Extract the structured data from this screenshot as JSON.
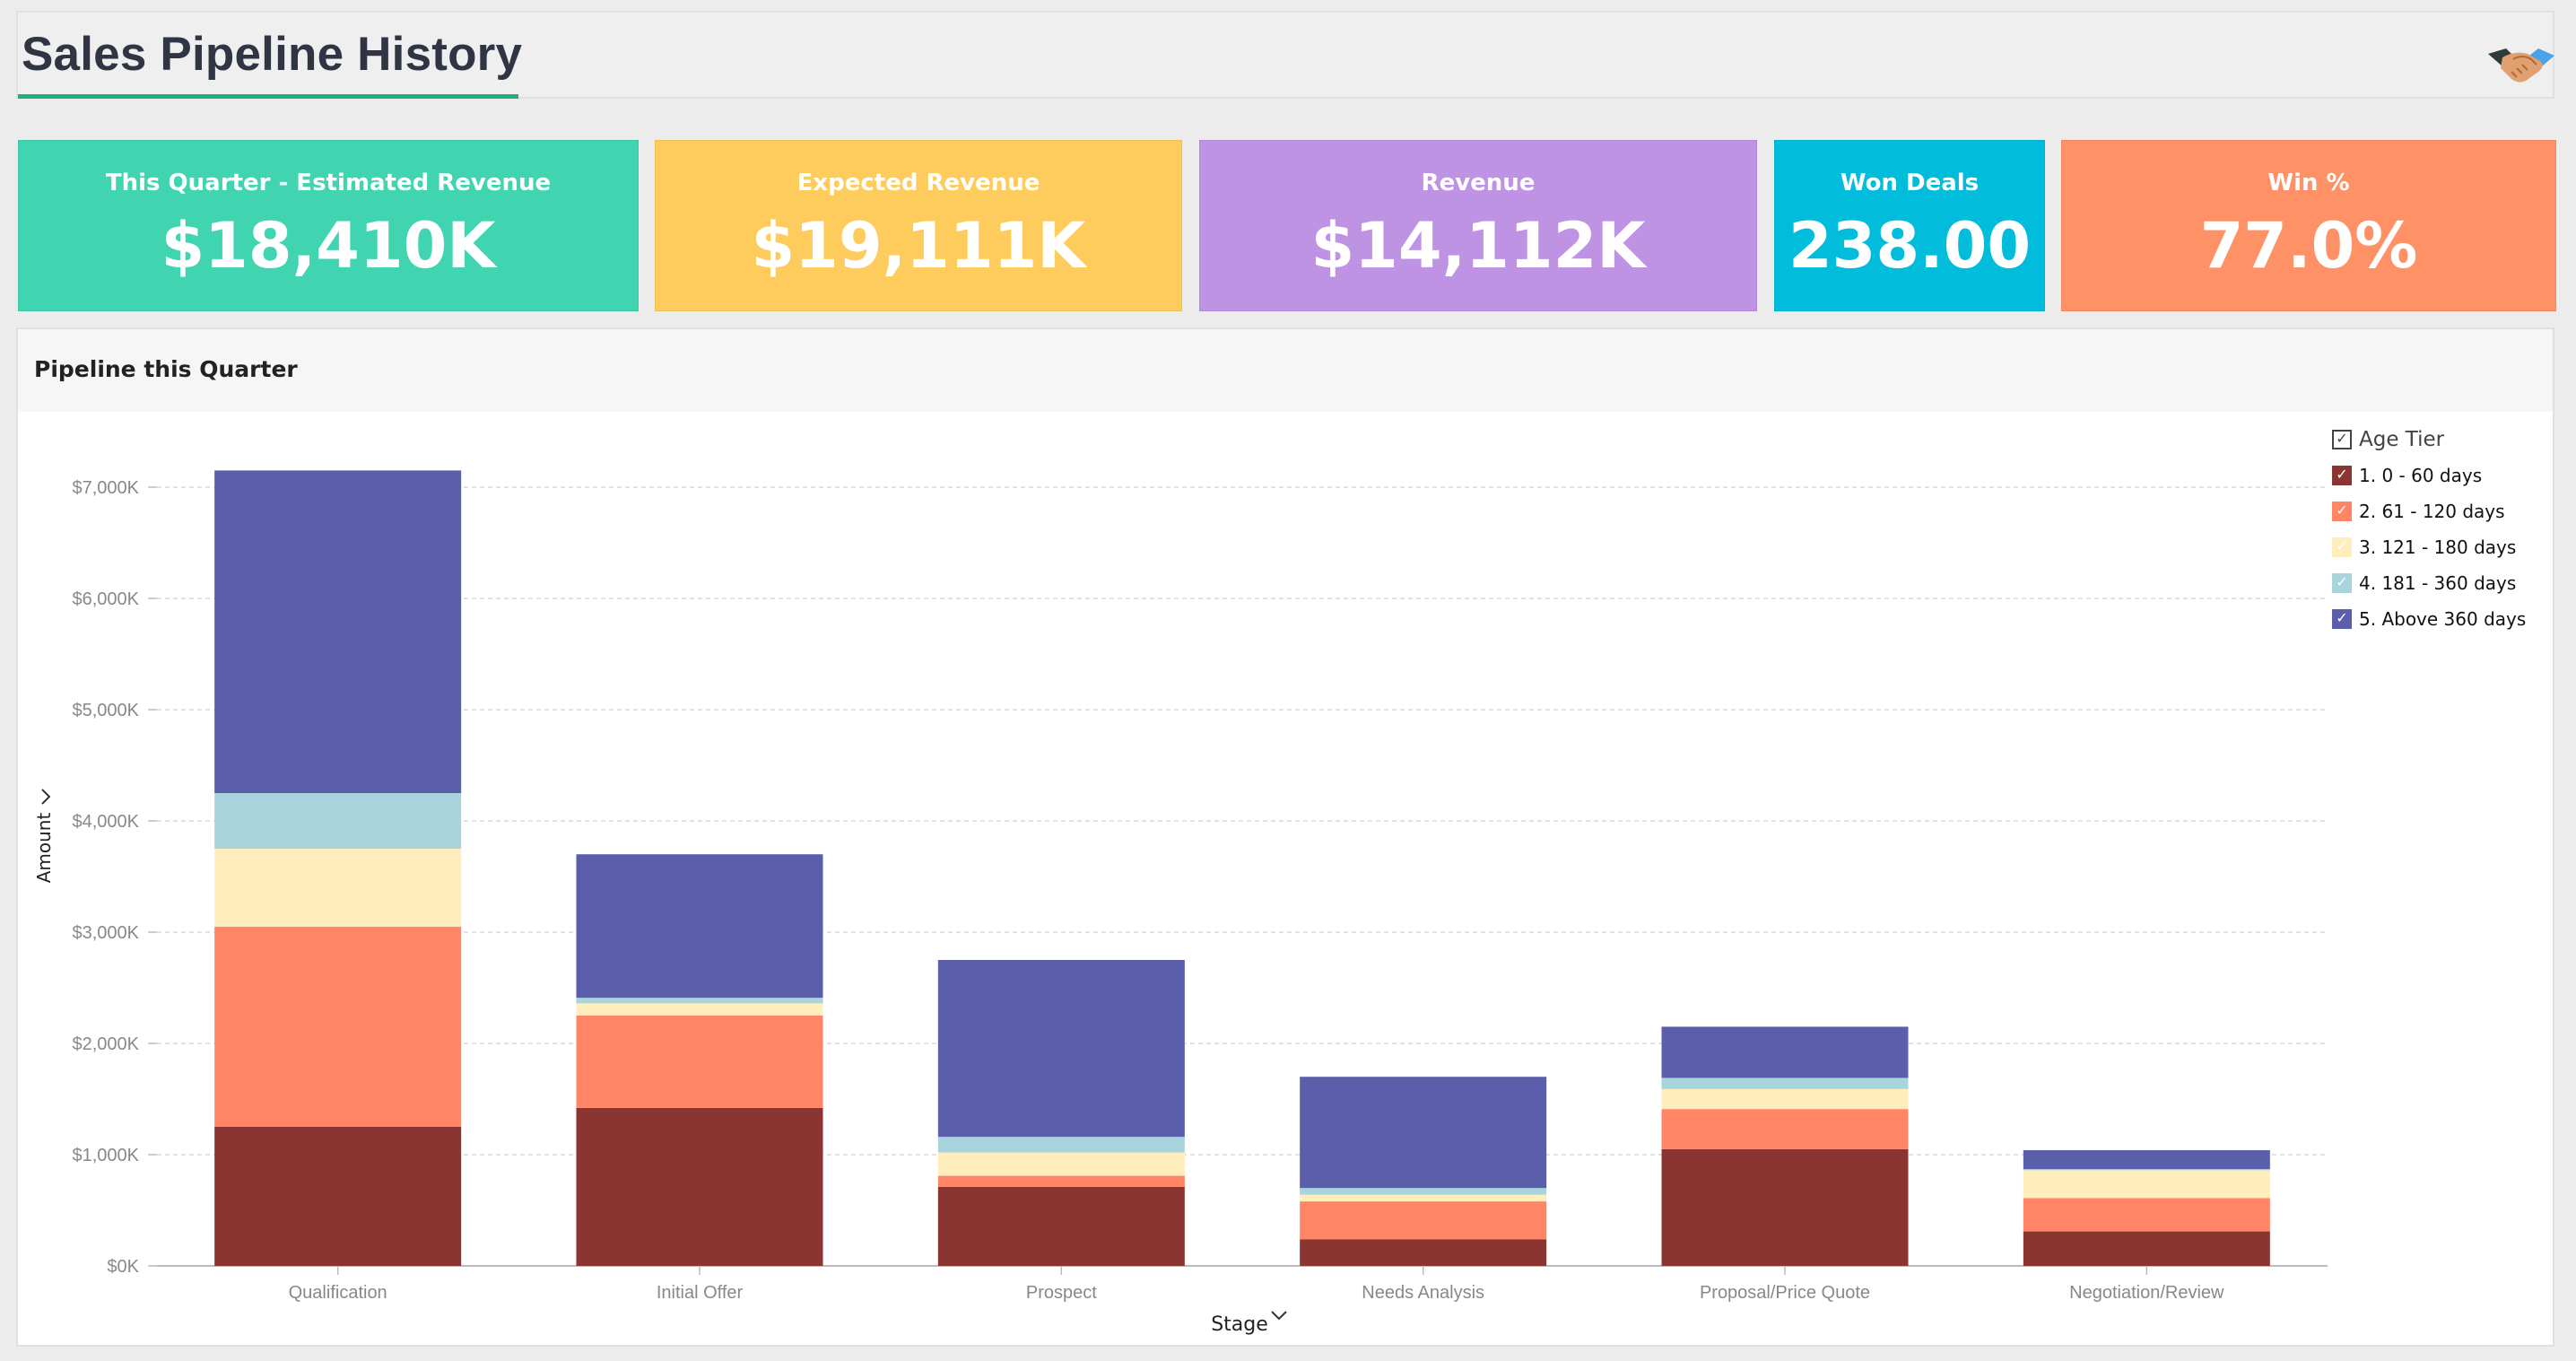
{
  "header": {
    "title": "Sales Pipeline History",
    "logo_icon": "handshake-icon"
  },
  "kpis": [
    {
      "label": "This Quarter - Estimated Revenue",
      "value": "$18,410K",
      "color": "#40d4b0"
    },
    {
      "label": "Expected Revenue",
      "value": "$19,111K",
      "color": "#fdcc5c"
    },
    {
      "label": "Revenue",
      "value": "$14,112K",
      "color": "#bf93e4"
    },
    {
      "label": "Won Deals",
      "value": "238.00",
      "color": "#02bcdc"
    },
    {
      "label": "Win %",
      "value": "77.0%",
      "color": "#fe9166"
    }
  ],
  "chart_panel": {
    "title": "Pipeline this Quarter"
  },
  "chart_data": {
    "type": "bar",
    "stacked": true,
    "title": "Pipeline this Quarter",
    "xlabel": "Stage",
    "ylabel": "Amount",
    "ylim": [
      0,
      7000
    ],
    "ytick_values": [
      0,
      1000,
      2000,
      3000,
      4000,
      5000,
      6000,
      7000
    ],
    "ytick_labels": [
      "$0K",
      "$1,000K",
      "$2,000K",
      "$3,000K",
      "$4,000K",
      "$5,000K",
      "$6,000K",
      "$7,000K"
    ],
    "categories": [
      "Qualification",
      "Initial Offer",
      "Prospect",
      "Needs Analysis",
      "Proposal/Price Quote",
      "Negotiation/Review"
    ],
    "legend_title": "Age Tier",
    "legend_placement": "top-right",
    "series": [
      {
        "name": "1. 0 - 60 days",
        "color": "#8b3533",
        "values": [
          1250,
          1420,
          710,
          240,
          1050,
          310
        ]
      },
      {
        "name": "2. 61 - 120 days",
        "color": "#ff8566",
        "values": [
          1800,
          830,
          100,
          340,
          360,
          300
        ]
      },
      {
        "name": "3. 121 - 180 days",
        "color": "#ffeebb",
        "values": [
          700,
          110,
          210,
          60,
          180,
          250
        ]
      },
      {
        "name": "4. 181 - 360 days",
        "color": "#a8d4dc",
        "values": [
          500,
          50,
          140,
          60,
          100,
          10
        ]
      },
      {
        "name": "5. Above 360 days",
        "color": "#5b5eab",
        "values": [
          2900,
          1290,
          1590,
          1000,
          460,
          170
        ]
      }
    ]
  }
}
